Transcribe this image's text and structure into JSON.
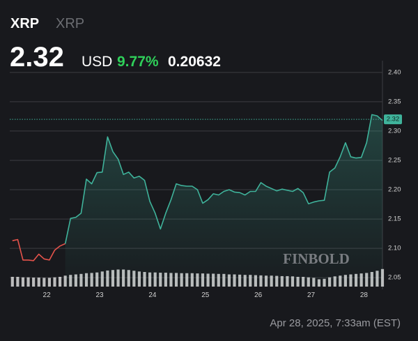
{
  "header": {
    "symbol": "XRP",
    "name": "XRP",
    "price": "2.32",
    "currency": "USD",
    "change_percent": "9.77%",
    "change": "0.20632"
  },
  "watermark": "FINBOLD",
  "timestamp": "Apr 28, 2025, 7:33am (EST)",
  "chart_data": {
    "type": "line",
    "x": [
      21.35,
      21.45,
      21.55,
      21.65,
      21.75,
      21.85,
      21.95,
      22.05,
      22.15,
      22.25,
      22.35,
      22.45,
      22.55,
      22.65,
      22.75,
      22.85,
      22.95,
      23.05,
      23.15,
      23.25,
      23.35,
      23.45,
      23.55,
      23.65,
      23.75,
      23.85,
      23.95,
      24.05,
      24.15,
      24.25,
      24.35,
      24.45,
      24.55,
      24.65,
      24.75,
      24.85,
      24.95,
      25.05,
      25.15,
      25.25,
      25.35,
      25.45,
      25.55,
      25.65,
      25.75,
      25.85,
      25.95,
      26.05,
      26.15,
      26.25,
      26.35,
      26.45,
      26.55,
      26.65,
      26.75,
      26.85,
      26.95,
      27.05,
      27.15,
      27.25,
      27.35,
      27.45,
      27.55,
      27.65,
      27.75,
      27.85,
      27.95,
      28.05,
      28.15,
      28.25,
      28.35
    ],
    "series": [
      {
        "color": "#e5534b",
        "values": [
          2.113,
          2.115,
          2.08,
          2.08,
          2.079,
          2.09,
          2.082,
          2.08,
          2.097,
          2.104,
          2.108,
          null,
          null,
          null,
          null,
          null,
          null,
          null,
          null,
          null,
          null,
          null,
          null,
          null,
          null,
          null,
          null,
          null,
          null,
          null,
          null,
          null,
          null,
          null,
          null,
          null,
          null,
          null,
          null,
          null,
          null,
          null,
          null,
          null,
          null,
          null,
          null,
          null,
          null,
          null,
          null,
          null,
          null,
          null,
          null,
          null,
          null,
          null,
          null,
          null,
          null,
          null,
          null,
          null,
          null,
          null,
          null,
          null,
          null,
          null,
          null
        ]
      },
      {
        "color": "#3fb39b",
        "values": [
          null,
          null,
          null,
          null,
          null,
          null,
          null,
          null,
          null,
          null,
          2.108,
          2.151,
          2.153,
          2.16,
          2.218,
          2.21,
          2.229,
          2.23,
          2.29,
          2.265,
          2.252,
          2.226,
          2.23,
          2.22,
          2.223,
          2.216,
          2.18,
          2.16,
          2.133,
          2.16,
          2.183,
          2.21,
          2.207,
          2.206,
          2.206,
          2.2,
          2.177,
          2.183,
          2.193,
          2.191,
          2.197,
          2.2,
          2.196,
          2.195,
          2.191,
          2.197,
          2.197,
          2.212,
          2.206,
          2.202,
          2.198,
          2.201,
          2.199,
          2.197,
          2.202,
          2.195,
          2.176,
          2.179,
          2.181,
          2.182,
          2.23,
          2.237,
          2.256,
          2.28,
          2.256,
          2.254,
          2.255,
          2.28,
          2.328,
          2.326,
          2.318
        ]
      },
      {
        "axis": "y2",
        "color": "#d9d9d9",
        "values": [
          40,
          40,
          38,
          38,
          37,
          37,
          36,
          36,
          38,
          40,
          45,
          48,
          50,
          52,
          55,
          56,
          58,
          62,
          66,
          68,
          70,
          70,
          68,
          65,
          62,
          60,
          58,
          58,
          57,
          57,
          56,
          56,
          55,
          55,
          55,
          54,
          54,
          53,
          53,
          52,
          52,
          50,
          50,
          49,
          48,
          48,
          47,
          46,
          45,
          45,
          44,
          43,
          43,
          42,
          40,
          40,
          38,
          36,
          30,
          32,
          38,
          42,
          45,
          48,
          50,
          52,
          54,
          56,
          60,
          65,
          72
        ]
      }
    ],
    "last_price": 2.32,
    "xlim": [
      21.3,
      28.35
    ],
    "xticks": [
      22,
      23,
      24,
      25,
      26,
      27,
      28
    ],
    "ylim": [
      2.03,
      2.42
    ],
    "yticks": [
      {
        "value": 2.05,
        "label": "2.05"
      },
      {
        "value": 2.1,
        "label": "2.10"
      },
      {
        "value": 2.15,
        "label": "2.15"
      },
      {
        "value": 2.2,
        "label": "2.20"
      },
      {
        "value": 2.25,
        "label": "2.25"
      },
      {
        "value": 2.3,
        "label": "2.30"
      },
      {
        "value": 2.35,
        "label": "2.35"
      },
      {
        "value": 2.4,
        "label": "2.40"
      }
    ],
    "y2lim": [
      0,
      100
    ],
    "grid": true
  }
}
